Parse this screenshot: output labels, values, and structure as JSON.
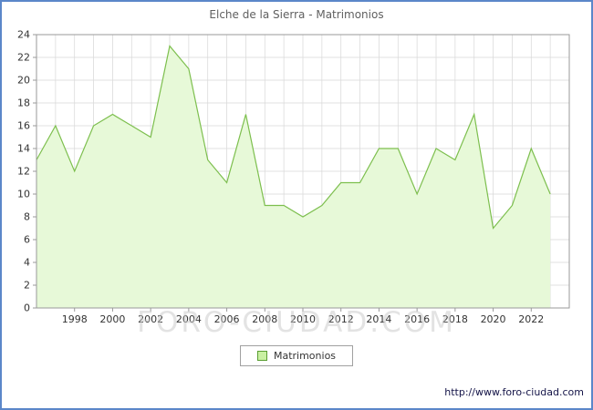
{
  "chart_data": {
    "type": "area",
    "title": "Elche de la Sierra - Matrimonios",
    "x": [
      1996,
      1997,
      1998,
      1999,
      2000,
      2001,
      2002,
      2003,
      2004,
      2005,
      2006,
      2007,
      2008,
      2009,
      2010,
      2011,
      2012,
      2013,
      2014,
      2015,
      2016,
      2017,
      2018,
      2019,
      2020,
      2021,
      2022,
      2023
    ],
    "series": [
      {
        "name": "Matrimonios",
        "values": [
          13,
          16,
          12,
          16,
          17,
          16,
          15,
          23,
          21,
          13,
          11,
          17,
          9,
          9,
          8,
          9,
          11,
          11,
          14,
          14,
          10,
          14,
          13,
          17,
          7,
          9,
          14,
          10
        ]
      }
    ],
    "ylim": [
      0,
      24
    ],
    "yticks": [
      0,
      2,
      4,
      6,
      8,
      10,
      12,
      14,
      16,
      18,
      20,
      22,
      24
    ],
    "xticks": [
      1998,
      2000,
      2002,
      2004,
      2006,
      2008,
      2010,
      2012,
      2014,
      2016,
      2018,
      2020,
      2022
    ],
    "grid": true,
    "legend_position": "bottom",
    "colors": {
      "frame_border": "#5b87c9",
      "line": "#7dbf4e",
      "fill": "#e7f9d8",
      "legend_fill": "#c9f0a2",
      "legend_border": "#5a9e32",
      "grid": "#d9d9d9",
      "plot_border": "#9a9a9a",
      "axis_text": "#333333",
      "title_text": "#606060",
      "watermark": "#c8c8c8",
      "url_text": "#131347"
    }
  },
  "watermark": {
    "text": "FORO-CIUDAD.COM"
  },
  "footer": {
    "url": "http://www.foro-ciudad.com"
  }
}
